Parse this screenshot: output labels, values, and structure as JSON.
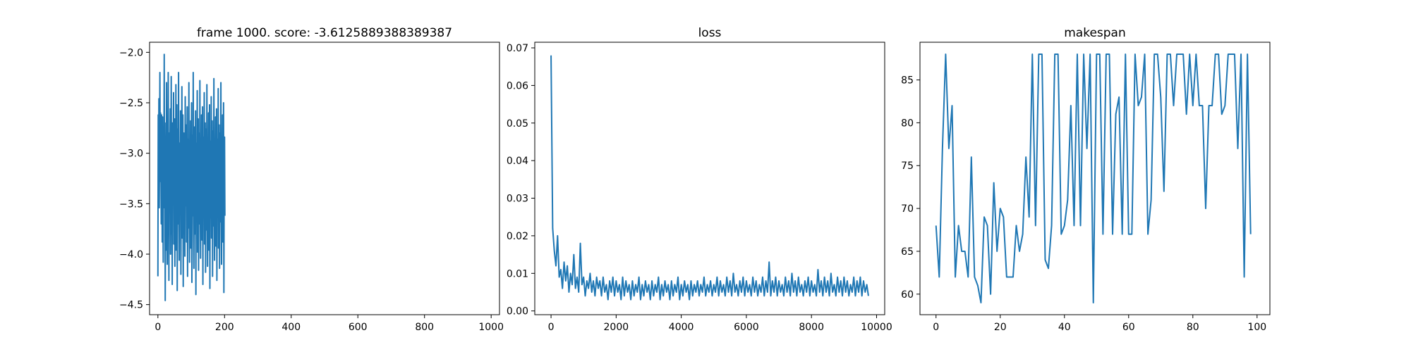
{
  "series_color": "#1f77b4",
  "chart_data": [
    {
      "type": "line",
      "title": "frame 1000. score: -3.6125889388389387",
      "xlabel": "",
      "ylabel": "",
      "xlim": [
        -25,
        1025
      ],
      "ylim": [
        -4.6,
        -1.9
      ],
      "xticks": [
        0,
        200,
        400,
        600,
        800,
        1000
      ],
      "yticks": [
        -4.5,
        -4.0,
        -3.5,
        -3.0,
        -2.5,
        -2.0
      ],
      "xtick_labels": [
        "0",
        "200",
        "400",
        "600",
        "800",
        "1000"
      ],
      "ytick_labels": [
        "−4.5",
        "−4.0",
        "−3.5",
        "−3.0",
        "−2.5",
        "−2.0"
      ],
      "grid": false,
      "data_description": "1000 noisy reward values per frame, roughly uniform between -4.45 and -2.02, centered near -3.3",
      "series": [
        {
          "x_start": 0,
          "x_step": 1,
          "values": [
            -4.22,
            -2.62,
            -3.3,
            -2.46,
            -3.54,
            -2.98,
            -2.2,
            -3.28,
            -2.6,
            -3.1,
            -3.7,
            -2.62,
            -3.02,
            -3.88,
            -2.64,
            -3.4,
            -4.08,
            -2.74,
            -3.2,
            -2.02,
            -3.54,
            -2.84,
            -4.46,
            -3.3,
            -2.7,
            -3.96,
            -2.3,
            -3.14,
            -4.1,
            -2.9,
            -3.6,
            -2.2,
            -3.36,
            -4.26,
            -2.8,
            -3.5,
            -3.02,
            -2.56,
            -4.0,
            -3.24,
            -2.24,
            -3.8,
            -2.96,
            -4.3,
            -2.7,
            -3.44,
            -3.1,
            -2.4,
            -3.9,
            -3.16,
            -2.66,
            -4.12,
            -2.86,
            -3.56,
            -2.32,
            -3.96,
            -3.28,
            -2.52,
            -4.36,
            -3.06,
            -2.76,
            -3.7,
            -2.2,
            -3.4,
            -4.06,
            -2.9,
            -3.6,
            -3.2,
            -2.58,
            -4.2,
            -2.94,
            -3.46,
            -2.34,
            -3.84,
            -3.1,
            -2.62,
            -4.32,
            -3.34,
            -2.8,
            -3.66,
            -2.98,
            -4.02,
            -2.44,
            -3.52,
            -3.0,
            -2.72,
            -3.88,
            -3.26,
            -2.54,
            -4.22,
            -3.14,
            -2.86,
            -3.74,
            -2.3,
            -3.5,
            -4.08,
            -2.96,
            -3.38,
            -2.68,
            -3.94,
            -3.18,
            -2.5,
            -4.28,
            -3.3,
            -2.82,
            -3.62,
            -2.2,
            -3.46,
            -4.14,
            -3.02,
            -2.74,
            -3.8,
            -3.2,
            -2.58,
            -4.4,
            -3.12,
            -2.9,
            -3.56,
            -2.38,
            -3.98,
            -3.34,
            -2.66,
            -4.16,
            -3.06,
            -2.8,
            -3.7,
            -2.28,
            -3.48,
            -4.04,
            -2.94,
            -3.42,
            -2.62,
            -3.86,
            -3.24,
            -2.54,
            -4.3,
            -3.16,
            -2.84,
            -3.6,
            -2.4,
            -3.9,
            -3.28,
            -2.7,
            -4.18,
            -3.04,
            -2.76,
            -3.76,
            -2.32,
            -3.52,
            -4.12,
            -2.98,
            -3.36,
            -2.6,
            -3.96,
            -3.2,
            -2.52,
            -4.34,
            -3.1,
            -2.88,
            -3.64,
            -2.44,
            -3.84,
            -3.3,
            -2.68,
            -4.22,
            -3.08,
            -2.78,
            -3.72,
            -2.26,
            -3.5,
            -4.06,
            -2.92,
            -3.4,
            -2.64,
            -3.92,
            -3.22,
            -2.56,
            -4.26,
            -3.14,
            -2.86,
            -3.58,
            -2.36,
            -3.94,
            -3.32,
            -2.72,
            -4.14,
            -3.02,
            -2.8,
            -3.68,
            -2.3,
            -3.46,
            -4.1,
            -2.96,
            -3.38,
            -2.62,
            -3.88,
            -3.18,
            -2.5,
            -4.38,
            -3.12,
            -2.84,
            -3.62
          ]
        }
      ]
    },
    {
      "type": "line",
      "title": "loss",
      "xlabel": "",
      "ylabel": "",
      "xlim": [
        -500,
        10250
      ],
      "ylim": [
        -0.001,
        0.0715
      ],
      "xticks": [
        0,
        2000,
        4000,
        6000,
        8000,
        10000
      ],
      "yticks": [
        0.0,
        0.01,
        0.02,
        0.03,
        0.04,
        0.05,
        0.06,
        0.07
      ],
      "xtick_labels": [
        "0",
        "2000",
        "4000",
        "6000",
        "8000",
        "10000"
      ],
      "ytick_labels": [
        "0.00",
        "0.01",
        "0.02",
        "0.03",
        "0.04",
        "0.05",
        "0.06",
        "0.07"
      ],
      "grid": false,
      "data_description": "about 9750 training-step loss values; spike to 0.068 at step 0, drops quickly to a noisy band of about 0.003-0.01",
      "series": [
        {
          "x_start": 0,
          "x_step": 50,
          "values": [
            0.068,
            0.022,
            0.016,
            0.012,
            0.02,
            0.009,
            0.011,
            0.006,
            0.013,
            0.008,
            0.012,
            0.005,
            0.01,
            0.007,
            0.015,
            0.006,
            0.009,
            0.005,
            0.018,
            0.007,
            0.009,
            0.004,
            0.008,
            0.006,
            0.01,
            0.005,
            0.008,
            0.004,
            0.009,
            0.006,
            0.008,
            0.004,
            0.009,
            0.005,
            0.007,
            0.003,
            0.008,
            0.005,
            0.009,
            0.004,
            0.008,
            0.005,
            0.007,
            0.003,
            0.009,
            0.004,
            0.008,
            0.005,
            0.007,
            0.003,
            0.008,
            0.004,
            0.007,
            0.005,
            0.009,
            0.003,
            0.007,
            0.004,
            0.008,
            0.005,
            0.007,
            0.003,
            0.008,
            0.004,
            0.007,
            0.005,
            0.009,
            0.003,
            0.007,
            0.004,
            0.008,
            0.005,
            0.007,
            0.003,
            0.008,
            0.004,
            0.007,
            0.005,
            0.009,
            0.003,
            0.007,
            0.004,
            0.008,
            0.005,
            0.007,
            0.003,
            0.008,
            0.004,
            0.007,
            0.005,
            0.008,
            0.004,
            0.007,
            0.005,
            0.009,
            0.004,
            0.007,
            0.005,
            0.008,
            0.004,
            0.007,
            0.005,
            0.009,
            0.004,
            0.008,
            0.005,
            0.007,
            0.004,
            0.009,
            0.005,
            0.008,
            0.004,
            0.01,
            0.005,
            0.007,
            0.004,
            0.008,
            0.005,
            0.009,
            0.004,
            0.008,
            0.005,
            0.007,
            0.004,
            0.009,
            0.005,
            0.008,
            0.004,
            0.007,
            0.005,
            0.009,
            0.004,
            0.008,
            0.005,
            0.013,
            0.004,
            0.008,
            0.005,
            0.009,
            0.004,
            0.008,
            0.005,
            0.007,
            0.004,
            0.009,
            0.005,
            0.008,
            0.004,
            0.01,
            0.005,
            0.008,
            0.004,
            0.009,
            0.005,
            0.007,
            0.004,
            0.008,
            0.005,
            0.009,
            0.004,
            0.008,
            0.005,
            0.007,
            0.004,
            0.011,
            0.005,
            0.008,
            0.004,
            0.009,
            0.005,
            0.008,
            0.004,
            0.01,
            0.005,
            0.007,
            0.004,
            0.009,
            0.005,
            0.008,
            0.004,
            0.009,
            0.005,
            0.008,
            0.004,
            0.007,
            0.005,
            0.009,
            0.004,
            0.008,
            0.005,
            0.009,
            0.004,
            0.008,
            0.005,
            0.007,
            0.004
          ]
        }
      ]
    },
    {
      "type": "line",
      "title": "makespan",
      "xlabel": "",
      "ylabel": "",
      "xlim": [
        -5,
        104
      ],
      "ylim": [
        57.6,
        89.4
      ],
      "xticks": [
        0,
        20,
        40,
        60,
        80,
        100
      ],
      "yticks": [
        60,
        65,
        70,
        75,
        80,
        85
      ],
      "xtick_labels": [
        "0",
        "20",
        "40",
        "60",
        "80",
        "100"
      ],
      "ytick_labels": [
        "60",
        "65",
        "70",
        "75",
        "80",
        "85"
      ],
      "grid": false,
      "series": [
        {
          "x_start": 0,
          "x_step": 1,
          "values": [
            68,
            62,
            77,
            88,
            77,
            82,
            62,
            68,
            65,
            65,
            62,
            76,
            62,
            61,
            59,
            69,
            68,
            60,
            73,
            65,
            70,
            69,
            62,
            62,
            62,
            68,
            65,
            67,
            76,
            69,
            88,
            68,
            88,
            88,
            64,
            63,
            68,
            88,
            88,
            67,
            68,
            71,
            82,
            68,
            88,
            68,
            88,
            77,
            88,
            59,
            88,
            88,
            67,
            88,
            88,
            67,
            81,
            83,
            67,
            88,
            67,
            67,
            88,
            82,
            83,
            88,
            67,
            71,
            88,
            88,
            83,
            72,
            88,
            88,
            82,
            88,
            88,
            88,
            81,
            88,
            82,
            88,
            82,
            82,
            70,
            82,
            82,
            88,
            88,
            81,
            82,
            88,
            88,
            88,
            77,
            88,
            62,
            88,
            67
          ]
        }
      ]
    }
  ]
}
